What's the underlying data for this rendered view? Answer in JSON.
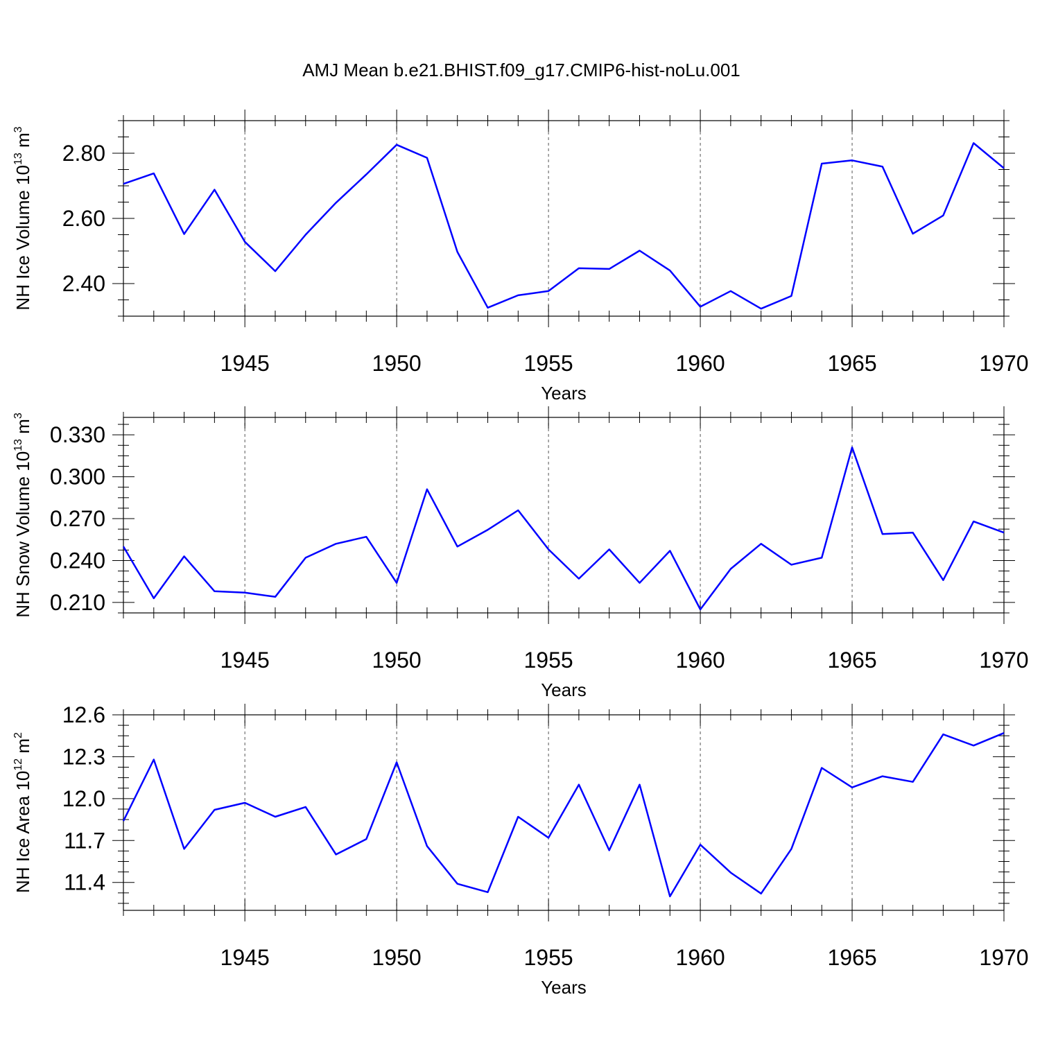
{
  "figure": {
    "title": "AMJ Mean b.e21.BHIST.f09_g17.CMIP6-hist-noLu.001",
    "line_color": "#0000ff",
    "grid_color": "#555555"
  },
  "chart_data": [
    {
      "type": "line",
      "title": "",
      "xlabel": "Years",
      "ylabel": {
        "prefix": "NH Ice Volume 10",
        "exponent": "13",
        "unit": " m",
        "unit_exponent": "3"
      },
      "xlim": [
        1941,
        1970
      ],
      "ylim": [
        2.3,
        2.9
      ],
      "xticks": [
        "1945",
        "1950",
        "1955",
        "1960",
        "1965",
        "1970"
      ],
      "yticks": [
        "2.40",
        "2.60",
        "2.80"
      ],
      "x": [
        1941,
        1942,
        1943,
        1944,
        1945,
        1946,
        1947,
        1948,
        1949,
        1950,
        1951,
        1952,
        1953,
        1954,
        1955,
        1956,
        1957,
        1958,
        1959,
        1960,
        1961,
        1962,
        1963,
        1964,
        1965,
        1966,
        1967,
        1968,
        1969,
        1970
      ],
      "series": [
        {
          "name": "NH Ice Volume",
          "values": [
            2.706,
            2.738,
            2.552,
            2.688,
            2.528,
            2.438,
            2.55,
            2.648,
            2.735,
            2.826,
            2.786,
            2.497,
            2.326,
            2.364,
            2.377,
            2.447,
            2.445,
            2.501,
            2.44,
            2.329,
            2.377,
            2.323,
            2.362,
            2.768,
            2.778,
            2.759,
            2.553,
            2.609,
            2.831,
            2.754
          ]
        }
      ]
    },
    {
      "type": "line",
      "title": "",
      "xlabel": "Years",
      "ylabel": {
        "prefix": "NH Snow Volume 10",
        "exponent": "13",
        "unit": " m",
        "unit_exponent": "3"
      },
      "xlim": [
        1941,
        1970
      ],
      "ylim": [
        0.2025,
        0.3425
      ],
      "xticks": [
        "1945",
        "1950",
        "1955",
        "1960",
        "1965",
        "1970"
      ],
      "yticks": [
        "0.210",
        "0.240",
        "0.270",
        "0.300",
        "0.330"
      ],
      "x": [
        1941,
        1942,
        1943,
        1944,
        1945,
        1946,
        1947,
        1948,
        1949,
        1950,
        1951,
        1952,
        1953,
        1954,
        1955,
        1956,
        1957,
        1958,
        1959,
        1960,
        1961,
        1962,
        1963,
        1964,
        1965,
        1966,
        1967,
        1968,
        1969,
        1970
      ],
      "series": [
        {
          "name": "NH Snow Volume",
          "values": [
            0.25,
            0.213,
            0.243,
            0.218,
            0.217,
            0.214,
            0.242,
            0.252,
            0.257,
            0.224,
            0.291,
            0.25,
            0.262,
            0.276,
            0.248,
            0.227,
            0.248,
            0.224,
            0.247,
            0.205,
            0.234,
            0.252,
            0.237,
            0.242,
            0.321,
            0.259,
            0.26,
            0.226,
            0.268,
            0.26
          ]
        }
      ]
    },
    {
      "type": "line",
      "title": "",
      "xlabel": "Years",
      "ylabel": {
        "prefix": "NH Ice Area 10",
        "exponent": "12",
        "unit": " m",
        "unit_exponent": "2"
      },
      "xlim": [
        1941,
        1970
      ],
      "ylim": [
        11.2,
        12.6
      ],
      "xticks": [
        "1945",
        "1950",
        "1955",
        "1960",
        "1965",
        "1970"
      ],
      "yticks": [
        "11.4",
        "11.7",
        "12.0",
        "12.3",
        "12.6"
      ],
      "x": [
        1941,
        1942,
        1943,
        1944,
        1945,
        1946,
        1947,
        1948,
        1949,
        1950,
        1951,
        1952,
        1953,
        1954,
        1955,
        1956,
        1957,
        1958,
        1959,
        1960,
        1961,
        1962,
        1963,
        1964,
        1965,
        1966,
        1967,
        1968,
        1969,
        1970
      ],
      "series": [
        {
          "name": "NH Ice Area",
          "values": [
            11.84,
            12.28,
            11.64,
            11.92,
            11.97,
            11.87,
            11.94,
            11.6,
            11.71,
            12.26,
            11.66,
            11.39,
            11.33,
            11.87,
            11.72,
            12.1,
            11.63,
            12.1,
            11.3,
            11.67,
            11.47,
            11.32,
            11.64,
            12.22,
            12.08,
            12.16,
            12.12,
            12.46,
            12.38,
            12.47
          ]
        }
      ]
    }
  ]
}
